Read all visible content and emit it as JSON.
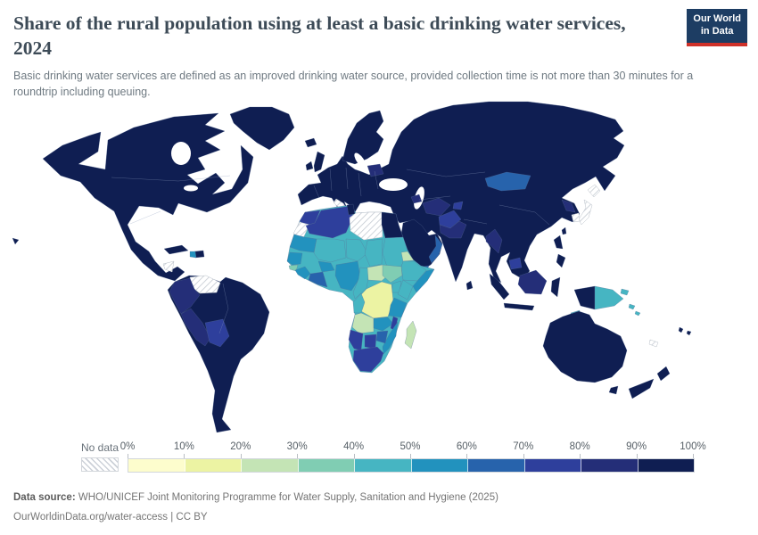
{
  "header": {
    "title": "Share of the rural population using at least a basic drinking water services, 2024",
    "subtitle": "Basic drinking water services are defined as an improved drinking water source, provided collection time is not more than 30 minutes for a roundtrip including queuing.",
    "logo": {
      "line1": "Our World",
      "line2": "in Data",
      "background": "#1d3d63",
      "accent": "#cf3129"
    }
  },
  "legend": {
    "no_data_label": "No data",
    "tick_labels": [
      "0%",
      "10%",
      "20%",
      "30%",
      "40%",
      "50%",
      "60%",
      "70%",
      "80%",
      "90%",
      "100%"
    ],
    "bins": [
      {
        "label": "0-10%",
        "color": "#fdfdcd"
      },
      {
        "label": "10-20%",
        "color": "#ecf3a3"
      },
      {
        "label": "20-30%",
        "color": "#c4e4b5"
      },
      {
        "label": "30-40%",
        "color": "#80cdb3"
      },
      {
        "label": "40-50%",
        "color": "#46b5c2"
      },
      {
        "label": "50-60%",
        "color": "#2292be"
      },
      {
        "label": "60-70%",
        "color": "#2763ac"
      },
      {
        "label": "70-80%",
        "color": "#2e3f9c"
      },
      {
        "label": "80-90%",
        "color": "#242e78"
      },
      {
        "label": "90-100%",
        "color": "#0f1e52"
      }
    ]
  },
  "footer": {
    "source_label": "Data source:",
    "source_text": " WHO/UNICEF Joint Monitoring Programme for Water Supply, Sanitation and Hygiene (2025)",
    "link_text": "OurWorldinData.org/water-access",
    "separator": " | ",
    "license_text": "CC BY"
  },
  "chart_data": {
    "type": "choropleth-map",
    "title": "Share of the rural population using at least a basic drinking water services",
    "year": 2024,
    "unit": "% of rural population",
    "legend_position": "bottom",
    "bins": [
      "0-10%",
      "10-20%",
      "20-30%",
      "30-40%",
      "40-50%",
      "50-60%",
      "60-70%",
      "70-80%",
      "80-90%",
      "90-100%",
      "No data"
    ],
    "regions": {
      "north-america": "90-100%",
      "greenland": "90-100%",
      "iceland": "90-100%",
      "hawaii": "90-100%",
      "cuba": "90-100%",
      "dominican-republic": "90-100%",
      "haiti": "50-60%",
      "nicaragua": "No data",
      "south-america": "90-100%",
      "venezuela": "No data",
      "colombia-ecuador": "80-90%",
      "peru": "80-90%",
      "bolivia": "70-80%",
      "eurasia": "90-100%",
      "scandinavia": "90-100%",
      "united-kingdom": "90-100%",
      "ireland": "90-100%",
      "belarus": "80-90%",
      "italy": "No data",
      "arabia": "90-100%",
      "yemen": "60-70%",
      "oman": "60-70%",
      "azerbaijan": "80-90%",
      "uzbekistan-turkmenistan": "80-90%",
      "tajikistan": "70-80%",
      "afghanistan": "70-80%",
      "pakistan": "80-90%",
      "mongolia": "60-70%",
      "north-korea": "80-90%",
      "south-korea": "No data",
      "japan": "No data",
      "sri-lanka": "90-100%",
      "taiwan": "90-100%",
      "myanmar": "80-90%",
      "cambodia": "70-80%",
      "africa-sahel-east": "40-50%",
      "morocco": "70-80%",
      "algeria": "70-80%",
      "tunisia": "90-100%",
      "western-sahara": "No data",
      "libya": "No data",
      "egypt": "90-100%",
      "mauritania": "50-60%",
      "mali": "40-50%",
      "niger": "40-50%",
      "chad": "40-50%",
      "sudan": "40-50%",
      "eritrea": "20-30%",
      "ethiopia": "40-50%",
      "somalia": "50-60%",
      "senegal": "50-60%",
      "guinea-bissau": "30-40%",
      "guinea": "50-60%",
      "cote-divoire-ghana": "60-70%",
      "burkina-faso": "50-60%",
      "nigeria": "50-60%",
      "cameroon": "40-50%",
      "central-african-republic": "20-30%",
      "south-sudan": "30-40%",
      "dr-congo": "10-20%",
      "congo-gabon": "40-50%",
      "uganda": "40-50%",
      "kenya": "40-50%",
      "tanzania": "50-60%",
      "angola": "20-30%",
      "zambia": "50-60%",
      "malawi": "70-80%",
      "mozambique": "50-60%",
      "zimbabwe": "60-70%",
      "botswana": "70-80%",
      "namibia": "70-80%",
      "south-africa": "70-80%",
      "madagascar": "20-30%",
      "sumatra": "90-100%",
      "java": "90-100%",
      "borneo": "80-90%",
      "sulawesi": "90-100%",
      "west-papua": "90-100%",
      "philippines": "90-100%",
      "papua-new-guinea": "40-50%",
      "solomon-islands": "40-50%",
      "timor-leste": "40-50%",
      "new-caledonia": "No data",
      "vanuatu-fiji": "90-100%",
      "australia": "90-100%",
      "tasmania": "90-100%",
      "new-zealand": "90-100%"
    }
  }
}
